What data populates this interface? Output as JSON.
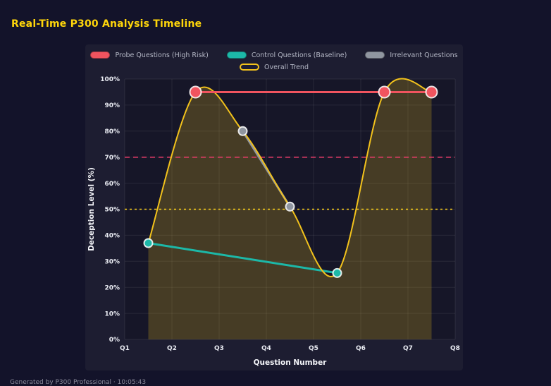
{
  "page": {
    "title": "Real-Time P300 Analysis Timeline",
    "footer": "Generated by P300 Professional · 10:05:43"
  },
  "colors": {
    "background": "#13132a",
    "panel": "#1d1d31",
    "title_accent": "#ffd60a"
  },
  "chart_data": {
    "type": "line",
    "title": "Real-Time P300 Analysis Timeline",
    "xlabel": "Question Number",
    "ylabel": "Deception Level (%)",
    "xlim": [
      1,
      8
    ],
    "ylim": [
      0,
      100
    ],
    "grid": true,
    "grid_color": "rgba(255,255,255,0.08)",
    "legend_position": "top",
    "x_tick_values": [
      1,
      2,
      3,
      4,
      5,
      6,
      7,
      8
    ],
    "x_ticks": [
      "Q1",
      "Q2",
      "Q3",
      "Q4",
      "Q5",
      "Q6",
      "Q7",
      "Q8"
    ],
    "y_tick_values": [
      0,
      10,
      20,
      30,
      40,
      50,
      60,
      70,
      80,
      90,
      100
    ],
    "y_ticks": [
      "0%",
      "10%",
      "20%",
      "30%",
      "40%",
      "50%",
      "60%",
      "70%",
      "80%",
      "90%",
      "100%"
    ],
    "series": [
      {
        "name": "Probe Questions (High Risk)",
        "color": "#f0545f",
        "x": [
          2.5,
          6.5,
          7.5
        ],
        "y": [
          95,
          95,
          95
        ],
        "line_width": 3,
        "marker_radius": 8,
        "markers": true,
        "smooth": false,
        "swatch": "fill"
      },
      {
        "name": "Control Questions (Baseline)",
        "color": "#1cb8a8",
        "x": [
          1.5,
          5.5
        ],
        "y": [
          37,
          25.5
        ],
        "line_width": 3,
        "marker_radius": 6,
        "markers": true,
        "smooth": false,
        "swatch": "fill"
      },
      {
        "name": "Irrelevant Questions",
        "color": "#9096a0",
        "x": [
          3.5,
          4.5
        ],
        "y": [
          80,
          51
        ],
        "line_width": 3,
        "marker_radius": 6,
        "markers": true,
        "smooth": false,
        "swatch": "fill"
      },
      {
        "name": "Overall Trend",
        "color": "#f2c21c",
        "x": [
          1.5,
          2.5,
          3.5,
          4.5,
          5.5,
          6.5,
          7.5
        ],
        "y": [
          37,
          95,
          80,
          51,
          25.5,
          95,
          95
        ],
        "line_width": 2,
        "markers": false,
        "smooth": true,
        "area_fill": "rgba(242,194,28,0.22)",
        "swatch": "outline"
      }
    ],
    "draw_order": [
      2,
      1,
      3,
      0
    ],
    "thresholds": [
      {
        "value": 70,
        "color": "#f23d6d",
        "dash": "7 5"
      },
      {
        "value": 50,
        "color": "#ffd21c",
        "dash": "3 4"
      }
    ]
  }
}
